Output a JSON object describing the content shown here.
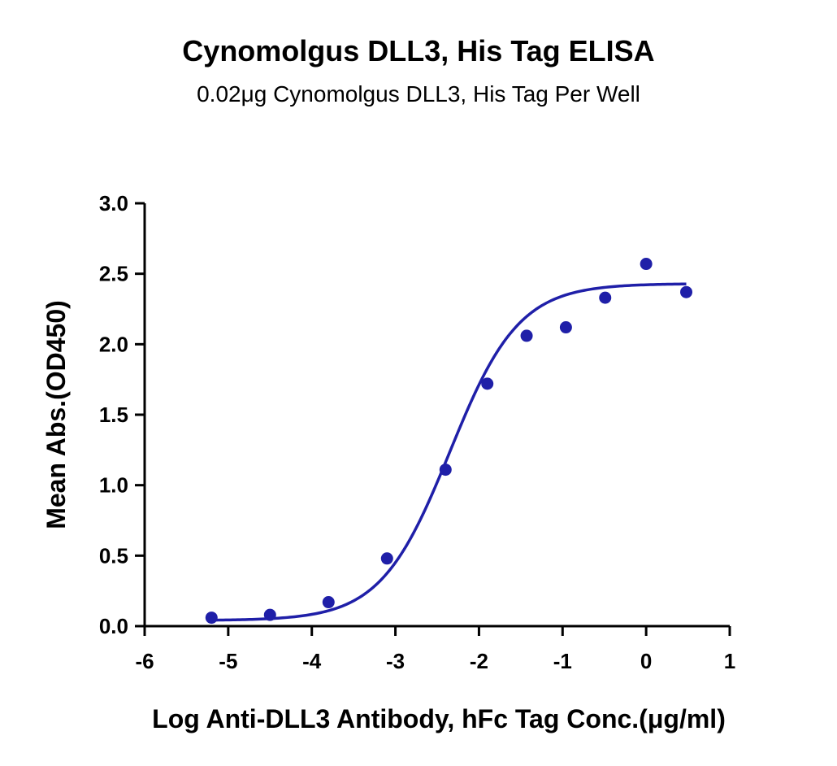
{
  "chart_data": {
    "type": "scatter",
    "title": "Cynomolgus DLL3, His Tag ELISA",
    "subtitle": "0.02μg Cynomolgus DLL3, His Tag Per Well",
    "xlabel": "Log Anti-DLL3 Antibody, hFc Tag Conc.(μg/ml)",
    "ylabel": "Mean Abs.(OD450)",
    "xlim": [
      -6,
      1
    ],
    "ylim": [
      0,
      3.0
    ],
    "x_ticks": [
      "-6",
      "-5",
      "-4",
      "-3",
      "-2",
      "-1",
      "0",
      "1"
    ],
    "y_ticks": [
      "0.0",
      "0.5",
      "1.0",
      "1.5",
      "2.0",
      "2.5",
      "3.0"
    ],
    "points": [
      {
        "x": -5.2,
        "y": 0.06
      },
      {
        "x": -4.5,
        "y": 0.08
      },
      {
        "x": -3.8,
        "y": 0.17
      },
      {
        "x": -3.1,
        "y": 0.48
      },
      {
        "x": -2.4,
        "y": 1.11
      },
      {
        "x": -1.9,
        "y": 1.72
      },
      {
        "x": -1.43,
        "y": 2.06
      },
      {
        "x": -0.96,
        "y": 2.12
      },
      {
        "x": -0.49,
        "y": 2.33
      },
      {
        "x": 0.0,
        "y": 2.57
      },
      {
        "x": 0.48,
        "y": 2.37
      }
    ],
    "fit": {
      "model": "4PL sigmoid",
      "bottom": 0.04,
      "top": 2.43,
      "logEC50": -2.35,
      "hill": 1.05,
      "x_range": [
        -5.2,
        0.48
      ]
    },
    "grid": false,
    "legend": "none",
    "color": "#1f1fa8"
  }
}
